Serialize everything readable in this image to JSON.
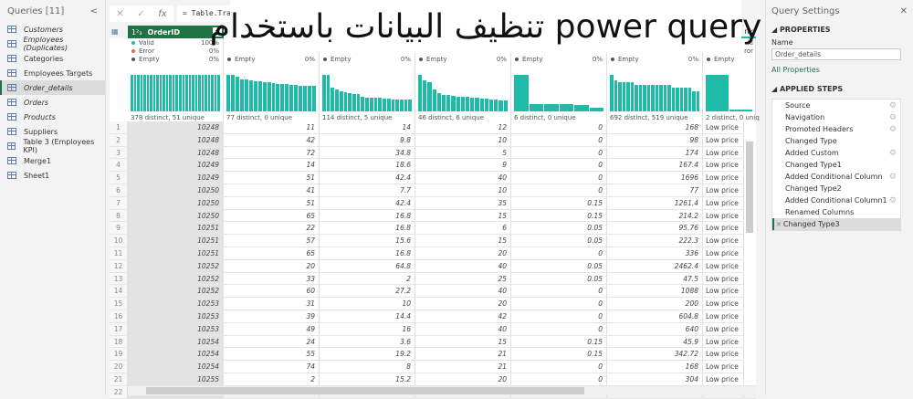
{
  "queries": {
    "title": "Queries [11]",
    "collapse": "<",
    "items": [
      {
        "label": "Customers",
        "italic": true
      },
      {
        "label": "Employees (Duplicates)",
        "italic": true
      },
      {
        "label": "Categories",
        "italic": false
      },
      {
        "label": "Employees Targets",
        "italic": false
      },
      {
        "label": "Order_details",
        "italic": true,
        "selected": true
      },
      {
        "label": "Orders",
        "italic": true
      },
      {
        "label": "Products",
        "italic": true
      },
      {
        "label": "Suppliers",
        "italic": false
      },
      {
        "label": "Table 3 (Employees KPI)",
        "italic": false
      },
      {
        "label": "Merge1",
        "italic": false
      },
      {
        "label": "Sheet1",
        "italic": false
      }
    ]
  },
  "formula": {
    "cancel": "✕",
    "confirm": "✓",
    "fx": "fx",
    "text": "= Table.Tra"
  },
  "overlay_title": "تنظيف  البيانات باستخدام power query",
  "grid": {
    "column_header": {
      "type_icon": "1²₃",
      "name": "OrderID",
      "partial_last": "nk"
    },
    "profile_first": {
      "valid": "Valid",
      "valid_pct": "100%",
      "error": "Error",
      "error_pct": "0%",
      "empty": "Empty",
      "empty_pct": "0%"
    },
    "profile_last_partial": {
      "valid": "id",
      "error": "ror",
      "empty": "Empty"
    },
    "colors": {
      "header": "#217346",
      "bars": "#1ebba8",
      "valid": "#1ebba8",
      "error": "#e06666",
      "empty": "#555555"
    },
    "profiles": [
      {
        "empty": "Empty",
        "empty_pct": "0%",
        "footer": "378 distinct, 51 unique",
        "bars": [
          1,
          1,
          1,
          1,
          1,
          1,
          1,
          1,
          1,
          1,
          1,
          1,
          1,
          1,
          1,
          1,
          1,
          1,
          1,
          1,
          1,
          1,
          1,
          1,
          1,
          1,
          1,
          1
        ]
      },
      {
        "empty": "Empty",
        "empty_pct": "0%",
        "footer": "77 distinct, 0 unique",
        "bars": [
          1,
          1,
          0.95,
          0.88,
          0.87,
          0.85,
          0.83,
          0.83,
          0.8,
          0.8,
          0.78,
          0.75,
          0.75,
          0.75,
          0.72,
          0.72,
          0.7,
          0.7,
          0.7,
          0.7
        ]
      },
      {
        "empty": "Empty",
        "empty_pct": "0%",
        "footer": "114 distinct, 5 unique",
        "bars": [
          1,
          1,
          0.65,
          0.6,
          0.55,
          0.53,
          0.5,
          0.48,
          0.47,
          0.4,
          0.37,
          0.37,
          0.37,
          0.37,
          0.35,
          0.35,
          0.33,
          0.33,
          0.33,
          0.33,
          0.33
        ]
      },
      {
        "empty": "Empty",
        "empty_pct": "0%",
        "footer": "46 distinct, 6 unique",
        "bars": [
          1,
          0.85,
          0.8,
          0.6,
          0.5,
          0.45,
          0.45,
          0.42,
          0.4,
          0.4,
          0.4,
          0.38,
          0.38,
          0.35,
          0.35,
          0.33,
          0.33,
          0.3,
          0.3
        ]
      },
      {
        "empty": "Empty",
        "empty_pct": "0%",
        "footer": "6 distinct, 0 unique",
        "bars": [
          1,
          0.2,
          0.2,
          0.2,
          0.18,
          0.1
        ]
      },
      {
        "empty": "Empty",
        "empty_pct": "0%",
        "footer": "692 distinct, 519 unique",
        "bars": [
          1,
          0.85,
          0.8,
          0.8,
          0.8,
          0.8,
          0.72,
          0.72,
          0.72,
          0.72,
          0.72,
          0.72,
          0.72,
          0.72,
          0.72,
          0.65,
          0.65,
          0.65,
          0.65,
          0.65,
          0.55,
          0.55
        ]
      },
      {
        "empty": "Empty",
        "empty_pct": "",
        "footer": "2 distinct, 0 uniq",
        "bars": [
          1,
          0.05
        ]
      }
    ],
    "rows": [
      [
        "1",
        "10248",
        "11",
        "14",
        "12",
        "0",
        "168",
        "Low price"
      ],
      [
        "2",
        "10248",
        "42",
        "9.8",
        "10",
        "0",
        "98",
        "Low price"
      ],
      [
        "3",
        "10248",
        "72",
        "34.8",
        "5",
        "0",
        "174",
        "Low price"
      ],
      [
        "4",
        "10249",
        "14",
        "18.6",
        "9",
        "0",
        "167.4",
        "Low price"
      ],
      [
        "5",
        "10249",
        "51",
        "42.4",
        "40",
        "0",
        "1696",
        "Low price"
      ],
      [
        "6",
        "10250",
        "41",
        "7.7",
        "10",
        "0",
        "77",
        "Low price"
      ],
      [
        "7",
        "10250",
        "51",
        "42.4",
        "35",
        "0.15",
        "1261.4",
        "Low price"
      ],
      [
        "8",
        "10250",
        "65",
        "16.8",
        "15",
        "0.15",
        "214.2",
        "Low price"
      ],
      [
        "9",
        "10251",
        "22",
        "16.8",
        "6",
        "0.05",
        "95.76",
        "Low price"
      ],
      [
        "10",
        "10251",
        "57",
        "15.6",
        "15",
        "0.05",
        "222.3",
        "Low price"
      ],
      [
        "11",
        "10251",
        "65",
        "16.8",
        "20",
        "0",
        "336",
        "Low price"
      ],
      [
        "12",
        "10252",
        "20",
        "64.8",
        "40",
        "0.05",
        "2462.4",
        "Low price"
      ],
      [
        "13",
        "10252",
        "33",
        "2",
        "25",
        "0.05",
        "47.5",
        "Low price"
      ],
      [
        "14",
        "10252",
        "60",
        "27.2",
        "40",
        "0",
        "1088",
        "Low price"
      ],
      [
        "15",
        "10253",
        "31",
        "10",
        "20",
        "0",
        "200",
        "Low price"
      ],
      [
        "16",
        "10253",
        "39",
        "14.4",
        "42",
        "0",
        "604.8",
        "Low price"
      ],
      [
        "17",
        "10253",
        "49",
        "16",
        "40",
        "0",
        "640",
        "Low price"
      ],
      [
        "18",
        "10254",
        "24",
        "3.6",
        "15",
        "0.15",
        "45.9",
        "Low price"
      ],
      [
        "19",
        "10254",
        "55",
        "19.2",
        "21",
        "0.15",
        "342.72",
        "Low price"
      ],
      [
        "20",
        "10254",
        "74",
        "8",
        "21",
        "0",
        "168",
        "Low price"
      ],
      [
        "21",
        "10255",
        "2",
        "15.2",
        "20",
        "0",
        "304",
        "Low price"
      ],
      [
        "22",
        "",
        "",
        "",
        "",
        "",
        "",
        ""
      ]
    ]
  },
  "settings": {
    "title": "Query Settings",
    "close": "✕",
    "properties": "PROPERTIES",
    "name_label": "Name",
    "name_value": "Order_details",
    "all_properties": "All Properties",
    "applied_steps": "APPLIED STEPS",
    "steps": [
      {
        "label": "Source",
        "gear": true
      },
      {
        "label": "Navigation",
        "gear": true
      },
      {
        "label": "Promoted Headers",
        "gear": true
      },
      {
        "label": "Changed Type",
        "gear": false
      },
      {
        "label": "Added Custom",
        "gear": true
      },
      {
        "label": "Changed Type1",
        "gear": false
      },
      {
        "label": "Added Conditional Column",
        "gear": true
      },
      {
        "label": "Changed Type2",
        "gear": false
      },
      {
        "label": "Added Conditional Column1",
        "gear": true
      },
      {
        "label": "Renamed Columns",
        "gear": false
      },
      {
        "label": "Changed Type3",
        "gear": false,
        "selected": true
      }
    ]
  }
}
